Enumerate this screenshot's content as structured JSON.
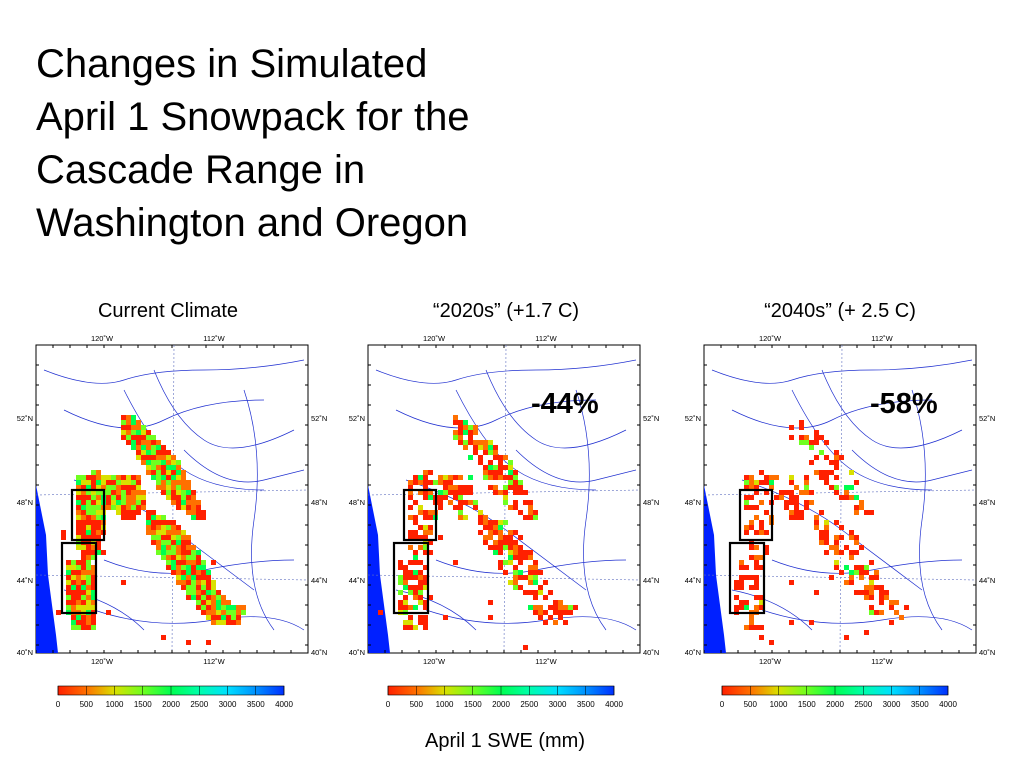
{
  "title_lines": [
    "Changes in Simulated",
    "April 1 Snowpack for the",
    "Cascade Range in",
    "Washington and Oregon"
  ],
  "panels": [
    {
      "title": "Current Climate",
      "change": ""
    },
    {
      "title": "“2020s” (+1.7 C)",
      "change": "-44%"
    },
    {
      "title": "“2040s” (+ 2.5 C)",
      "change": "-58%"
    }
  ],
  "map_axes": {
    "lon_ticks": [
      "120˚W",
      "112˚W"
    ],
    "lat_ticks": [
      "52˚N",
      "48˚N",
      "44˚N",
      "40˚N"
    ]
  },
  "colorbar": {
    "ticks": [
      "0",
      "500",
      "1000",
      "1500",
      "2000",
      "2500",
      "3000",
      "3500",
      "4000"
    ],
    "colors": [
      "#ff2000",
      "#ff7000",
      "#d9e000",
      "#70ff20",
      "#00ff50",
      "#00ffaa",
      "#00e0ff",
      "#0090ff",
      "#0030ff"
    ]
  },
  "xlabel": "April 1 SWE (mm)"
}
